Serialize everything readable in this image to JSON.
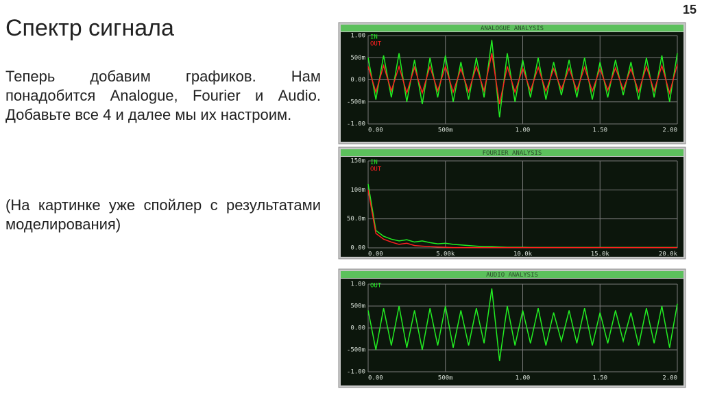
{
  "slide": {
    "page_number": "15",
    "title": "Спектр сигнала",
    "paragraphs": [
      "Теперь добавим графиков. Нам понадобится Analogue, Fourier и Audio. Добавьте все 4 и далее мы их настроим.",
      "(На картинке уже спойлер с результатами моделирования)"
    ]
  },
  "chart_data": [
    {
      "type": "line",
      "title": "ANALOGUE ANALYSIS",
      "grid": true,
      "x": [
        0,
        0.05,
        0.1,
        0.15,
        0.2,
        0.25,
        0.3,
        0.35,
        0.4,
        0.45,
        0.5,
        0.55,
        0.6,
        0.65,
        0.7,
        0.75,
        0.8,
        0.85,
        0.9,
        0.95,
        1,
        1.05,
        1.1,
        1.15,
        1.2,
        1.25,
        1.3,
        1.35,
        1.4,
        1.45,
        1.5,
        1.55,
        1.6,
        1.65,
        1.7,
        1.75,
        1.8,
        1.85,
        1.9,
        1.95,
        2
      ],
      "xlim": [
        0,
        2
      ],
      "ylim": [
        -1,
        1
      ],
      "xticks": [
        {
          "value": 0,
          "label": "0.00"
        },
        {
          "value": 0.5,
          "label": "500m"
        },
        {
          "value": 1,
          "label": "1.00"
        },
        {
          "value": 1.5,
          "label": "1.50"
        },
        {
          "value": 2,
          "label": "2.00"
        }
      ],
      "yticks": [
        {
          "value": 1,
          "label": "1.00"
        },
        {
          "value": 0.5,
          "label": "500m"
        },
        {
          "value": 0,
          "label": "0.00"
        },
        {
          "value": -0.5,
          "label": "-500m"
        },
        {
          "value": -1,
          "label": "-1.00"
        }
      ],
      "series": [
        {
          "name": "IN",
          "color": "#22ee22",
          "values": [
            0.5,
            -0.45,
            0.55,
            -0.4,
            0.6,
            -0.5,
            0.45,
            -0.55,
            0.5,
            -0.4,
            0.55,
            -0.5,
            0.4,
            -0.45,
            0.5,
            -0.4,
            0.9,
            -0.85,
            0.6,
            -0.5,
            0.45,
            -0.4,
            0.5,
            -0.45,
            0.4,
            -0.35,
            0.45,
            -0.4,
            0.5,
            -0.45,
            0.4,
            -0.4,
            0.45,
            -0.35,
            0.4,
            -0.45,
            0.5,
            -0.4,
            0.55,
            -0.5,
            0.6
          ]
        },
        {
          "name": "OUT",
          "color": "#ff2020",
          "values": [
            0.3,
            -0.28,
            0.32,
            -0.25,
            0.3,
            -0.3,
            0.28,
            -0.3,
            0.3,
            -0.25,
            0.3,
            -0.28,
            0.25,
            -0.27,
            0.3,
            -0.25,
            0.6,
            -0.55,
            0.3,
            -0.28,
            0.26,
            -0.25,
            0.28,
            -0.26,
            0.25,
            -0.22,
            0.26,
            -0.24,
            0.28,
            -0.26,
            0.25,
            -0.24,
            0.27,
            -0.22,
            0.25,
            -0.27,
            0.3,
            -0.25,
            0.32,
            -0.3,
            0.35
          ]
        }
      ]
    },
    {
      "type": "line",
      "title": "FOURIER ANALYSIS",
      "grid": true,
      "x": [
        0,
        500,
        1000,
        1500,
        2000,
        2500,
        3000,
        3500,
        4000,
        4500,
        5000,
        5500,
        6000,
        6500,
        7000,
        7500,
        8000,
        8500,
        9000,
        9500,
        10000,
        10500,
        11000,
        11500,
        12000,
        12500,
        13000,
        13500,
        14000,
        14500,
        15000,
        15500,
        16000,
        16500,
        17000,
        17500,
        18000,
        18500,
        19000,
        19500,
        20000
      ],
      "xlim": [
        0,
        20000
      ],
      "ylim": [
        0,
        0.15
      ],
      "xticks": [
        {
          "value": 0,
          "label": "0.00"
        },
        {
          "value": 5000,
          "label": "5.00k"
        },
        {
          "value": 10000,
          "label": "10.0k"
        },
        {
          "value": 15000,
          "label": "15.0k"
        },
        {
          "value": 20000,
          "label": "20.0k"
        }
      ],
      "yticks": [
        {
          "value": 0.15,
          "label": "150m"
        },
        {
          "value": 0.1,
          "label": "100m"
        },
        {
          "value": 0.05,
          "label": "50.0m"
        },
        {
          "value": 0,
          "label": "0.00"
        }
      ],
      "series": [
        {
          "name": "IN",
          "color": "#22ee22",
          "values": [
            0.11,
            0.03,
            0.02,
            0.015,
            0.012,
            0.014,
            0.01,
            0.012,
            0.009,
            0.007,
            0.008,
            0.006,
            0.005,
            0.004,
            0.003,
            0.002,
            0.002,
            0.0015,
            0.001,
            0.001,
            0.001,
            0.0008,
            0.0008,
            0.0008,
            0.0008,
            0.0008,
            0.0008,
            0.0008,
            0.0008,
            0.0008,
            0.0008,
            0.0008,
            0.0008,
            0.0008,
            0.0008,
            0.0008,
            0.0008,
            0.0008,
            0.0008,
            0.0008,
            0.0008
          ]
        },
        {
          "name": "OUT",
          "color": "#ff2020",
          "values": [
            0.1,
            0.025,
            0.015,
            0.01,
            0.006,
            0.008,
            0.004,
            0.003,
            0.002,
            0.0015,
            0.001,
            0.0005,
            0.0005,
            0.0005,
            0.0005,
            0.0005,
            0.0005,
            0.0005,
            0.0005,
            0.0005,
            0.0005,
            0.0005,
            0.0005,
            0.0005,
            0.0005,
            0.0005,
            0.0005,
            0.0005,
            0.0005,
            0.0005,
            0.0005,
            0.0005,
            0.0005,
            0.0005,
            0.0005,
            0.0005,
            0.0005,
            0.0005,
            0.0005,
            0.0005,
            0.0005
          ]
        }
      ]
    },
    {
      "type": "line",
      "title": "AUDIO ANALYSIS",
      "grid": true,
      "x": [
        0,
        0.05,
        0.1,
        0.15,
        0.2,
        0.25,
        0.3,
        0.35,
        0.4,
        0.45,
        0.5,
        0.55,
        0.6,
        0.65,
        0.7,
        0.75,
        0.8,
        0.85,
        0.9,
        0.95,
        1,
        1.05,
        1.1,
        1.15,
        1.2,
        1.25,
        1.3,
        1.35,
        1.4,
        1.45,
        1.5,
        1.55,
        1.6,
        1.65,
        1.7,
        1.75,
        1.8,
        1.85,
        1.9,
        1.95,
        2
      ],
      "xlim": [
        0,
        2
      ],
      "ylim": [
        -1,
        1
      ],
      "xticks": [
        {
          "value": 0,
          "label": "0.00"
        },
        {
          "value": 0.5,
          "label": "500m"
        },
        {
          "value": 1,
          "label": "1.00"
        },
        {
          "value": 1.5,
          "label": "1.50"
        },
        {
          "value": 2,
          "label": "2.00"
        }
      ],
      "yticks": [
        {
          "value": 1,
          "label": "1.00"
        },
        {
          "value": 0.5,
          "label": "500m"
        },
        {
          "value": 0,
          "label": "0.00"
        },
        {
          "value": -0.5,
          "label": "-500m"
        },
        {
          "value": -1,
          "label": "-1.00"
        }
      ],
      "series": [
        {
          "name": "OUT",
          "color": "#22ee22",
          "values": [
            0.4,
            -0.5,
            0.45,
            -0.4,
            0.5,
            -0.45,
            0.4,
            -0.5,
            0.45,
            -0.4,
            0.5,
            -0.45,
            0.4,
            -0.4,
            0.45,
            -0.35,
            0.9,
            -0.75,
            0.5,
            -0.4,
            0.4,
            -0.35,
            0.45,
            -0.4,
            0.35,
            -0.3,
            0.4,
            -0.35,
            0.45,
            -0.4,
            0.35,
            -0.35,
            0.4,
            -0.3,
            0.35,
            -0.4,
            0.45,
            -0.35,
            0.5,
            -0.45,
            0.55
          ]
        }
      ]
    }
  ]
}
